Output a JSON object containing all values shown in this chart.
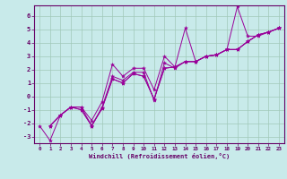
{
  "xlabel": "Windchill (Refroidissement éolien,°C)",
  "bg_color": "#c8eaea",
  "grid_color": "#a0c8b8",
  "line_color": "#990099",
  "xlim": [
    -0.5,
    23.5
  ],
  "ylim": [
    -3.5,
    6.8
  ],
  "xticks": [
    0,
    1,
    2,
    3,
    4,
    5,
    6,
    7,
    8,
    9,
    10,
    11,
    12,
    13,
    14,
    15,
    16,
    17,
    18,
    19,
    20,
    21,
    22,
    23
  ],
  "yticks": [
    -3,
    -2,
    -1,
    0,
    1,
    2,
    3,
    4,
    5,
    6
  ],
  "lines": [
    {
      "x": [
        1,
        2,
        3,
        4,
        5,
        6,
        7,
        8,
        9,
        10,
        11,
        12,
        13,
        14,
        15,
        16,
        17,
        18,
        19,
        20,
        21,
        22,
        23
      ],
      "y": [
        -2.2,
        -1.4,
        -0.8,
        -0.8,
        -1.8,
        -0.4,
        2.4,
        1.5,
        2.1,
        2.1,
        0.5,
        3.0,
        2.2,
        5.1,
        2.6,
        3.0,
        3.1,
        3.5,
        6.7,
        4.5,
        4.5,
        4.8,
        5.1
      ]
    },
    {
      "x": [
        1,
        2,
        3,
        4,
        5,
        6,
        7,
        8,
        9,
        10,
        11,
        12,
        13,
        14,
        15,
        16,
        17,
        18,
        19,
        20,
        21,
        22,
        23
      ],
      "y": [
        -2.2,
        -1.4,
        -0.8,
        -0.8,
        -2.2,
        -0.8,
        1.5,
        1.2,
        1.8,
        1.8,
        -0.3,
        2.5,
        2.1,
        2.6,
        2.6,
        3.0,
        3.1,
        3.5,
        3.5,
        4.1,
        4.6,
        4.8,
        5.1
      ]
    },
    {
      "x": [
        1,
        2,
        3,
        4,
        5,
        6,
        7,
        8,
        9,
        10,
        11,
        12,
        13,
        14,
        15,
        16,
        17,
        18,
        19,
        20,
        21,
        22,
        23
      ],
      "y": [
        -2.2,
        -1.4,
        -0.8,
        -1.0,
        -2.2,
        -0.9,
        1.3,
        1.0,
        1.7,
        1.5,
        -0.2,
        2.1,
        2.2,
        2.6,
        2.6,
        3.0,
        3.1,
        3.5,
        3.5,
        4.1,
        4.6,
        4.8,
        5.1
      ]
    },
    {
      "x": [
        0,
        1,
        2,
        3,
        4,
        5,
        6,
        7,
        8,
        9,
        10,
        11,
        12,
        13,
        14,
        15,
        16,
        17,
        18,
        19,
        20,
        21,
        22,
        23
      ],
      "y": [
        -2.2,
        -3.3,
        -1.4,
        -0.8,
        -1.0,
        -2.2,
        -0.9,
        1.3,
        1.0,
        1.7,
        1.5,
        -0.2,
        2.1,
        2.2,
        2.6,
        2.6,
        3.0,
        3.1,
        3.5,
        3.5,
        4.1,
        4.6,
        4.8,
        5.1
      ]
    }
  ]
}
